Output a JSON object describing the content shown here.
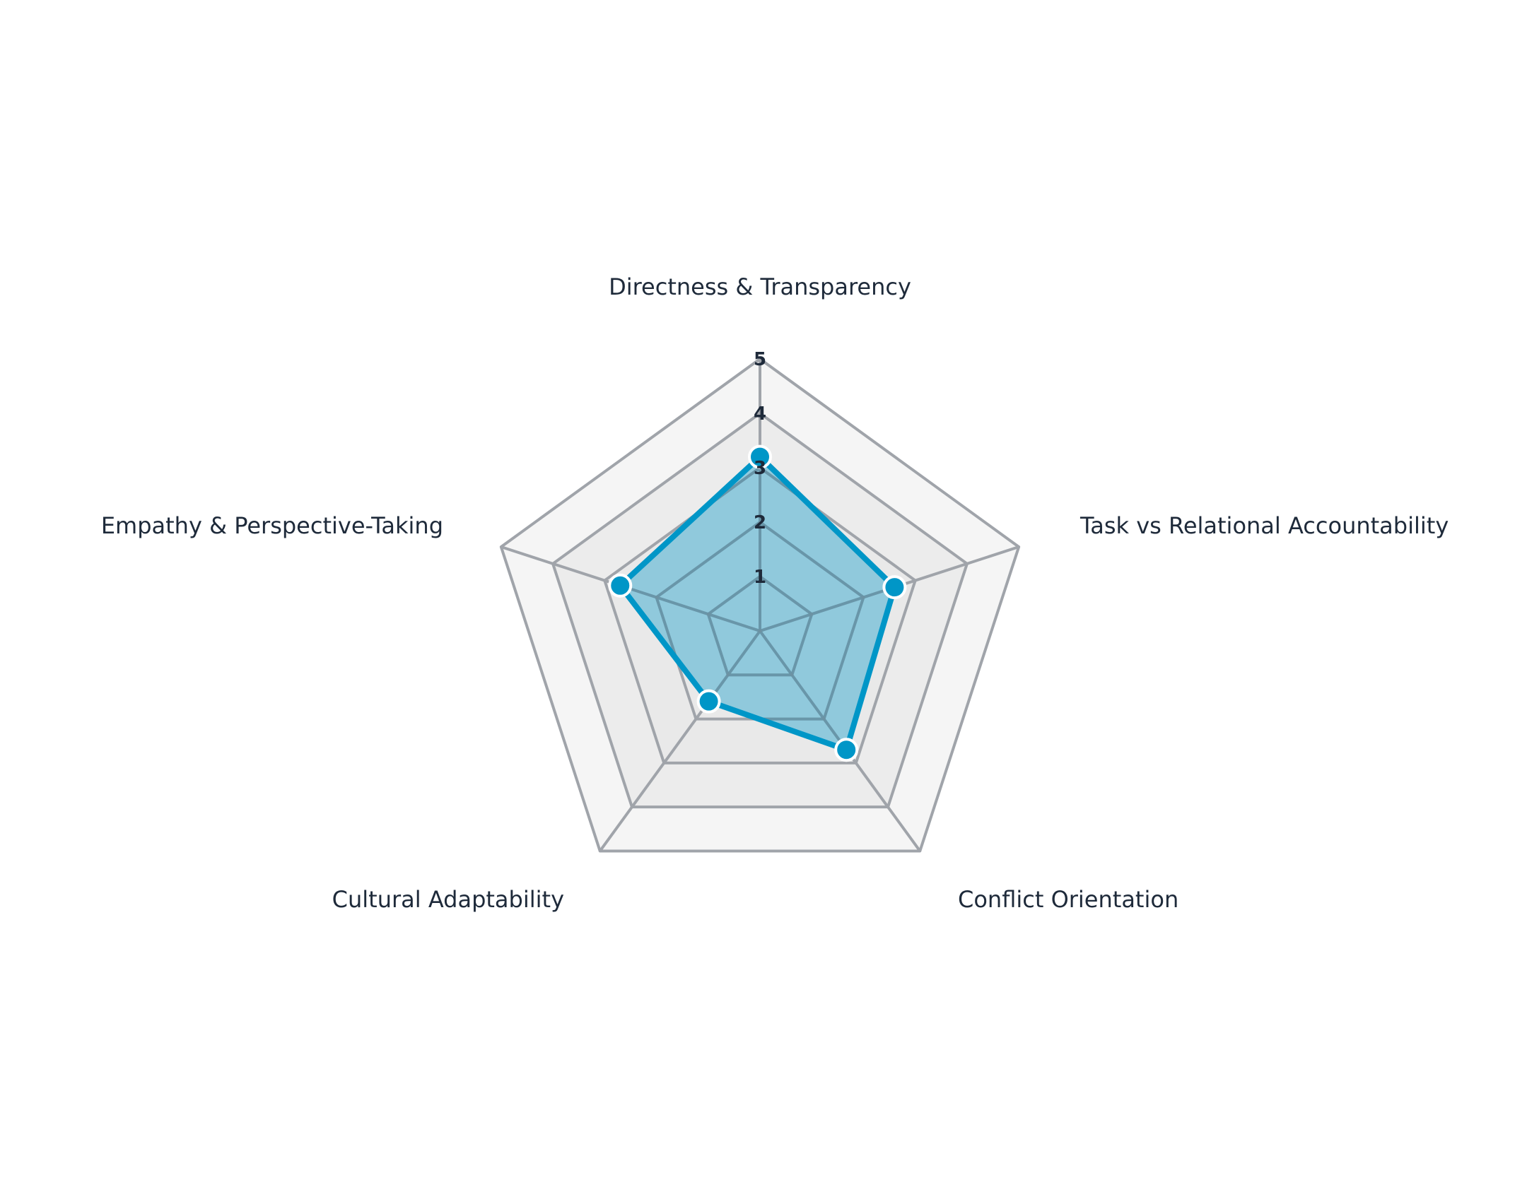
{
  "chart_data": {
    "type": "radar",
    "axes": [
      "Directness & Transparency",
      "Task vs Relational Accountability",
      "Conflict Orientation",
      "Cultural Adaptability",
      "Empathy & Perspective-Taking"
    ],
    "series": [
      {
        "values": [
          3.2,
          2.6,
          2.7,
          1.6,
          2.7
        ],
        "color": "#0096c7"
      }
    ],
    "range": [
      0,
      5
    ],
    "ticks": [
      "1",
      "2",
      "3",
      "4",
      "5"
    ],
    "grid": true,
    "legend": "none"
  }
}
